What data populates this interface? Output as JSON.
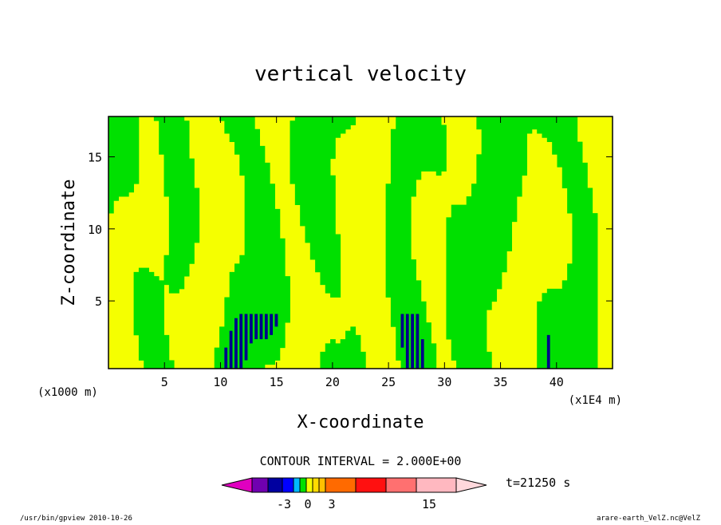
{
  "chart_data": {
    "type": "heatmap",
    "title": "vertical velocity",
    "xlabel": "X-coordinate",
    "ylabel": "Z-coordinate",
    "x_scale_label": "(x1000 m)",
    "x_scale_label_right": "(x1E4 m)",
    "xlim": [
      0,
      45
    ],
    "ylim": [
      0.3,
      17.8
    ],
    "x_ticks": [
      5,
      10,
      15,
      20,
      25,
      30,
      35,
      40
    ],
    "y_ticks": [
      5,
      10,
      15
    ],
    "grid": false,
    "contour_interval_text": "CONTOUR INTERVAL = 2.000E+00",
    "time_label": "t=21250 s",
    "colorbar_tick_labels": [
      "-3",
      "0",
      "3",
      "15"
    ],
    "fill_colors": {
      "positive_small": "#f5ff00",
      "negative_small": "#00e000",
      "strong_negative": "#00008a",
      "contour_line": "#000000"
    },
    "colorbar_colors": [
      "#e000c0",
      "#7000b0",
      "#0000a0",
      "#0000ff",
      "#00b8ff",
      "#00e000",
      "#f5ff00",
      "#ffdc00",
      "#ffc000",
      "#ff6a00",
      "#ff1010",
      "#ff7070",
      "#ffb8c0",
      "#ffd8dc"
    ]
  },
  "footer": {
    "left": "/usr/bin/gpview   2010-10-26",
    "right": "arare-earth_VelZ.nc@VelZ"
  }
}
